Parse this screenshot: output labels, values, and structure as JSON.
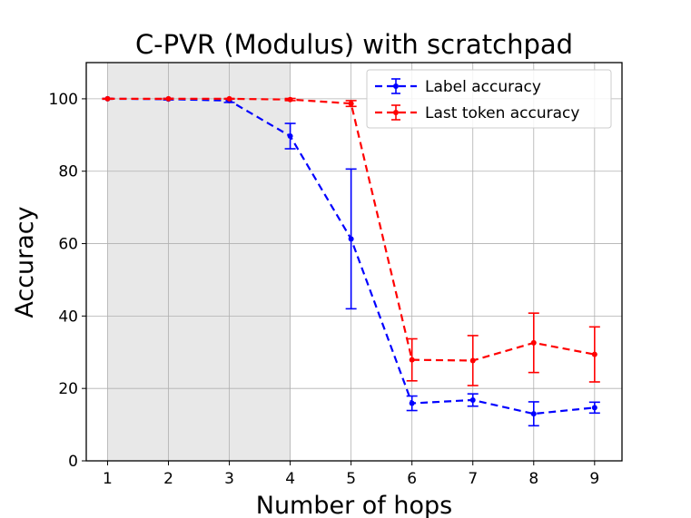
{
  "chart_data": {
    "type": "line",
    "title": "C-PVR (Modulus) with scratchpad",
    "xlabel": "Number of hops",
    "ylabel": "Accuracy",
    "x": [
      1,
      2,
      3,
      4,
      5,
      6,
      7,
      8,
      9
    ],
    "xlim": [
      0.65,
      9.45
    ],
    "ylim": [
      0,
      110
    ],
    "xticks": [
      "1",
      "2",
      "3",
      "4",
      "5",
      "6",
      "7",
      "8",
      "9"
    ],
    "yticks": [
      "0",
      "20",
      "40",
      "60",
      "80",
      "100"
    ],
    "grid": true,
    "legend_position": "top-right",
    "shaded_region": {
      "x_from": 1,
      "x_to": 4,
      "color": "#e8e8e8"
    },
    "series": [
      {
        "name": "Label accuracy",
        "color": "#0000ff",
        "values": [
          100,
          99.9,
          99.5,
          89.7,
          61.3,
          15.9,
          16.8,
          13.0,
          14.7
        ],
        "errors": [
          0.1,
          0.2,
          0.5,
          3.5,
          19.3,
          2.0,
          1.7,
          3.3,
          1.5
        ]
      },
      {
        "name": "Last token accuracy",
        "color": "#ff0000",
        "values": [
          100,
          100,
          100,
          99.8,
          98.7,
          27.9,
          27.7,
          32.6,
          29.4
        ],
        "errors": [
          0.1,
          0.1,
          0.1,
          0.3,
          0.8,
          5.8,
          6.9,
          8.2,
          7.6
        ]
      }
    ]
  }
}
